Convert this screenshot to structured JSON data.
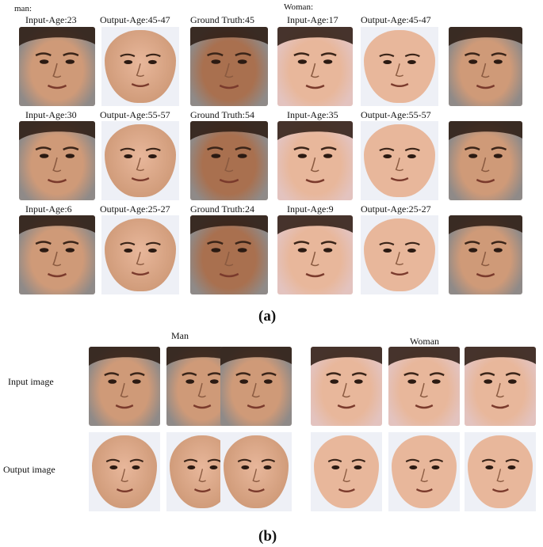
{
  "panel_a": {
    "man_label": "man:",
    "woman_label": "Woman:",
    "sublabel": "(a)",
    "man_rows": [
      {
        "input": "Input-Age:23",
        "output": "Output-Age:45-47",
        "truth": "Ground Truth:45"
      },
      {
        "input": "Input-Age:30",
        "output": "Output-Age:55-57",
        "truth": "Ground Truth:54"
      },
      {
        "input": "Input-Age:6",
        "output": "Output-Age:25-27",
        "truth": "Ground Truth:24"
      }
    ],
    "woman_rows": [
      {
        "input": "Input-Age:17",
        "output": "Output-Age:45-47"
      },
      {
        "input": "Input-Age:35",
        "output": "Output-Age:55-57"
      },
      {
        "input": "Input-Age:9",
        "output": "Output-Age:25-27"
      }
    ]
  },
  "panel_b": {
    "man_title": "Man",
    "woman_title": "Woman",
    "input_label": "Input image",
    "output_label": "Output image",
    "sublabel": "(b)"
  },
  "colors": {
    "skin_light": "#e8b79b",
    "skin_mid": "#cf9a78",
    "skin_dark": "#a9704f",
    "hair_dark": "#2a1a12",
    "mask_bg": "#eef0f6",
    "background_pink": "#e3c3bf",
    "background_gray": "#8f8a88"
  }
}
